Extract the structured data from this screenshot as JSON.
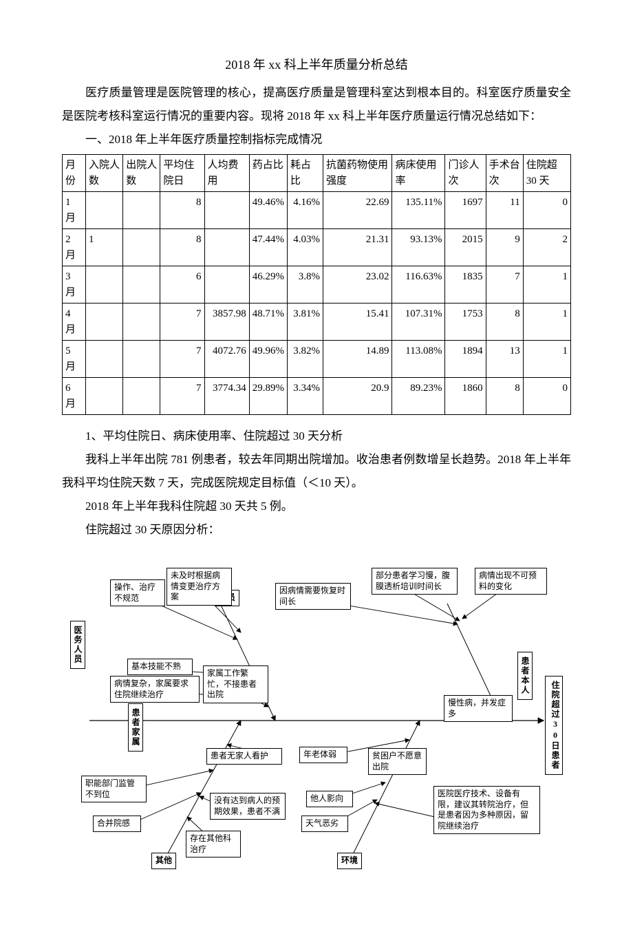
{
  "title": "2018 年 xx 科上半年质量分析总结",
  "paras": {
    "p1": "医疗质量管理是医院管理的核心，提高医疗质量是管理科室达到根本目的。科室医疗质量安全是医院考核科室运行情况的重要内容。现将 2018 年 xx 科上半年医疗质量运行情况总结如下：",
    "h1": "一、2018 年上半年医疗质量控制指标完成情况",
    "a1": "1、平均住院日、病床使用率、住院超过 30 天分析",
    "a2": "我科上半年出院 781 例患者，较去年同期出院增加。收治患者例数增呈长趋势。2018 年上半年我科平均住院天数 7 天，完成医院规定目标值（＜10 天）。",
    "a3": "2018 年上半年我科住院超 30 天共 5 例。",
    "a4": "住院超过 30 天原因分析："
  },
  "table": {
    "columns": [
      "月份",
      "入院人数",
      "出院人数",
      "平均住院日",
      "人均费用",
      "药占比",
      "耗占比",
      "抗菌药物使用强度",
      "病床使用率",
      "门诊人次",
      "手术台次",
      "住院超 30 天"
    ],
    "rows": [
      [
        "1 月",
        "",
        "",
        "8",
        "",
        "49.46%",
        "4.16%",
        "22.69",
        "135.11%",
        "1697",
        "11",
        "0"
      ],
      [
        "2 月",
        "1",
        "",
        "8",
        "",
        "47.44%",
        "4.03%",
        "21.31",
        "93.13%",
        "2015",
        "9",
        "2"
      ],
      [
        "3 月",
        "",
        "",
        "6",
        "",
        "46.29%",
        "3.8%",
        "23.02",
        "116.63%",
        "1835",
        "7",
        "1"
      ],
      [
        "4 月",
        "",
        "",
        "7",
        "3857.98",
        "48.71%",
        "3.81%",
        "15.41",
        "107.31%",
        "1753",
        "8",
        "1"
      ],
      [
        "5 月",
        "",
        "",
        "7",
        "4072.76",
        "49.96%",
        "3.82%",
        "14.89",
        "113.08%",
        "1894",
        "13",
        "1"
      ],
      [
        "6 月",
        "",
        "",
        "7",
        "3774.34",
        "29.89%",
        "3.34%",
        "20.9",
        "89.23%",
        "1860",
        "8",
        "0"
      ]
    ],
    "numeric_cols": [
      3,
      4,
      5,
      6,
      7,
      8,
      9,
      10,
      11
    ]
  },
  "fishbone": {
    "effect": "住院超过30日患者",
    "categories": {
      "medical_staff": "医务人员",
      "personnel": "人员",
      "patient_family": "患者家属",
      "patient_self": "患者本人",
      "other": "其他",
      "environment": "环境"
    },
    "causes": {
      "c1": "操作、治疗不规范",
      "c2": "未及时根据病情变更治疗方案",
      "c3": "基本技能不熟",
      "c4": "病情复杂，家属要求住院继续治疗",
      "c5": "家属工作繁忙，不接患者出院",
      "c6": "患者无家人看护",
      "c7": "因病情需要恢复时间长",
      "c8": "部分患者学习慢，腹膜透析培训时间长",
      "c9": "病情出现不可预料的变化",
      "c10": "年老体弱",
      "c11": "贫困户不愿意出院",
      "c12": "慢性病，并发症多",
      "c13": "职能部门监管不到位",
      "c14": "合并院感",
      "c15": "没有达到病人的预期效果，患者不满",
      "c16": "存在其他科治疗",
      "c17": "他人影向",
      "c18": "天气恶劣",
      "c19": "医院医疗技术、设备有限，建议其转院治疗，但是患者因为多种原因，留院继续治疗"
    }
  }
}
